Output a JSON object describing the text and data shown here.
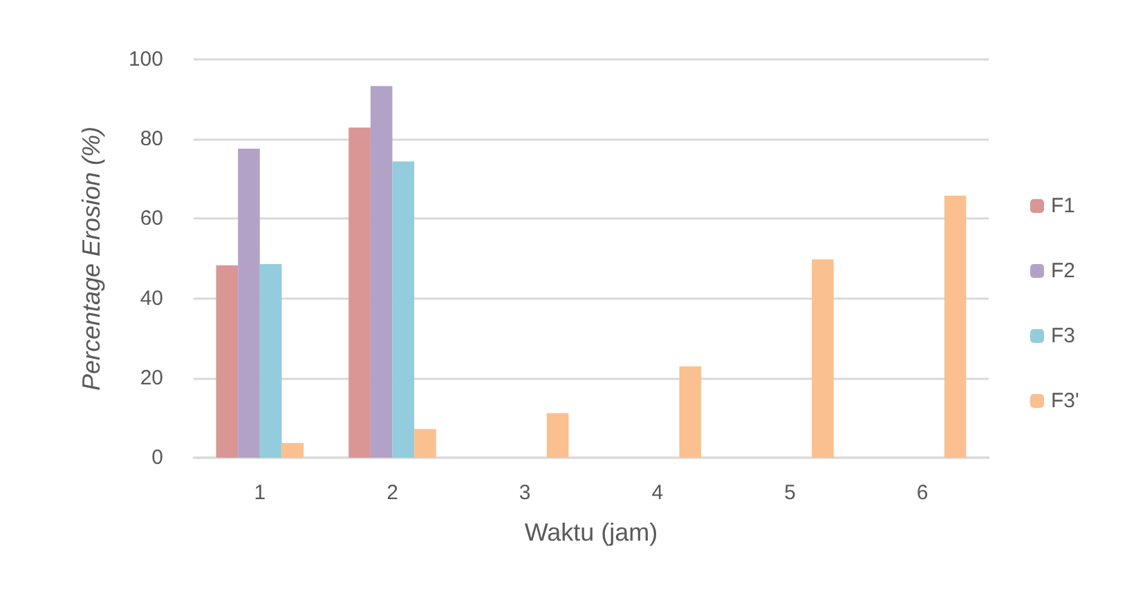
{
  "chart_data": {
    "type": "bar",
    "xlabel": "Waktu (jam)",
    "ylabel": "Percentage Erosion (%)",
    "categories": [
      "1",
      "2",
      "3",
      "4",
      "5",
      "6"
    ],
    "series": [
      {
        "name": "F1",
        "color": "#d99694",
        "values": [
          48.3,
          82.9,
          null,
          null,
          null,
          null
        ]
      },
      {
        "name": "F2",
        "color": "#b3a2c7",
        "values": [
          77.6,
          93.3,
          null,
          null,
          null,
          null
        ]
      },
      {
        "name": "F3",
        "color": "#93cddd",
        "values": [
          48.6,
          74.4,
          null,
          null,
          null,
          null
        ]
      },
      {
        "name": "F3'",
        "color": "#fac090",
        "values": [
          3.7,
          7.2,
          11.2,
          22.9,
          49.8,
          65.8
        ]
      }
    ],
    "ylim": [
      0,
      100
    ],
    "yticks": [
      0,
      20,
      40,
      60,
      80,
      100
    ],
    "grid": "y",
    "legend": "right"
  }
}
